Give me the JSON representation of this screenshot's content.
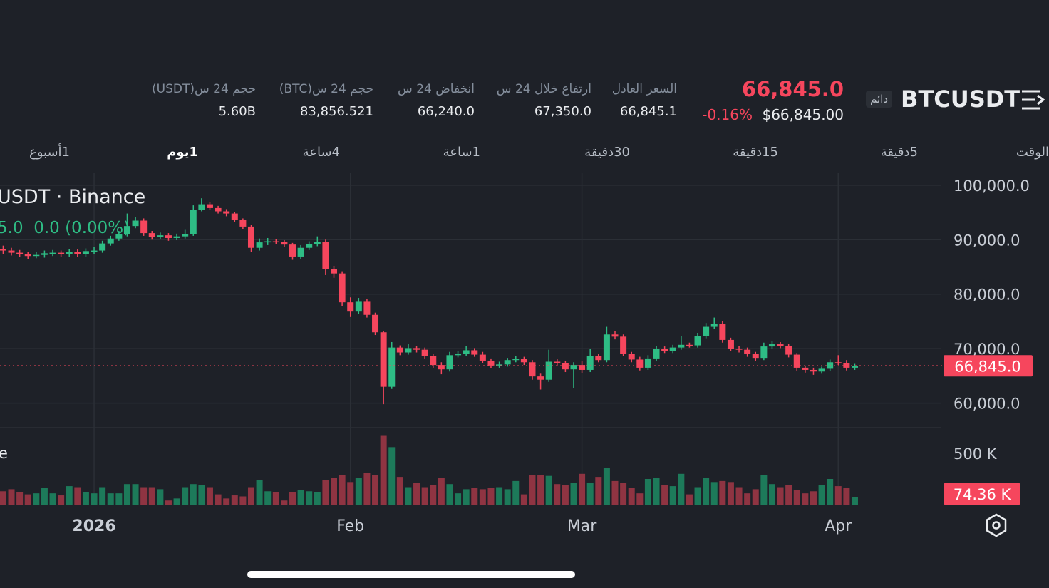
{
  "header": {
    "symbol": "BTCUSDT",
    "badge": "دائم",
    "price": "66,845.0",
    "change": "-0.16%",
    "price_usd": "$66,845.00",
    "stats": [
      {
        "label": "السعر العادل",
        "value": "66,845.1"
      },
      {
        "label": "ارتفاع خلال 24 س",
        "value": "67,350.0"
      },
      {
        "label": "انخفاض 24 س",
        "value": "66,240.0"
      },
      {
        "label": "حجم 24 س(BTC)",
        "value": "83,856.521"
      },
      {
        "label": "حجم 24 س(USDT)",
        "value": "5.60B"
      }
    ]
  },
  "timeframes": {
    "items": [
      "الوقت",
      "5دقيقة",
      "15دقيقة",
      "30دقيقة",
      "1ساعة",
      "4ساعة",
      "1يوم",
      "1أسبوع"
    ],
    "active": 6
  },
  "chart_data": {
    "type": "candlestick",
    "title": "USDT · Binance",
    "readout": "5.0  0.0 (0.00%)",
    "up_color": "#2ebd85",
    "down_color": "#f6465d",
    "open": [
      88300,
      88000,
      87600,
      87300,
      87000,
      87200,
      87500,
      87600,
      87400,
      87800,
      87300,
      87900,
      88000,
      89300,
      90200,
      91000,
      92500,
      93500,
      91200,
      90500,
      90800,
      90300,
      90600,
      91000,
      95500,
      96500,
      95800,
      95200,
      94800,
      93600,
      92400,
      88500,
      89500,
      89700,
      89600,
      89100,
      86900,
      88500,
      89200,
      89600,
      84600,
      83800,
      78500,
      76800,
      78600,
      76200,
      73000,
      63000,
      70200,
      69300,
      70100,
      69800,
      68600,
      67000,
      66200,
      68800,
      69000,
      69700,
      68900,
      67800,
      66900,
      67100,
      67900,
      68100,
      67500,
      64900,
      64300,
      67600,
      67400,
      66200,
      67000,
      66100,
      68600,
      67900,
      72600,
      72200,
      69000,
      68000,
      66500,
      68200,
      69900,
      69600,
      70200,
      70700,
      70600,
      72300,
      74000,
      74600,
      71600,
      70000,
      69800,
      69000,
      68300,
      70400,
      70800,
      70500,
      68900,
      66500,
      66100,
      65800,
      66300,
      67500,
      67400,
      66500
    ],
    "high": [
      88900,
      88500,
      88100,
      87800,
      87700,
      88000,
      88100,
      88000,
      88300,
      88200,
      88400,
      88600,
      89800,
      90700,
      91600,
      94800,
      94200,
      93900,
      91600,
      91300,
      91200,
      91100,
      91800,
      96300,
      97600,
      96900,
      96200,
      95600,
      95100,
      93900,
      92700,
      90200,
      90300,
      90100,
      89900,
      89400,
      89000,
      89700,
      90600,
      90000,
      85200,
      84200,
      79400,
      79300,
      79100,
      76600,
      73200,
      71200,
      70600,
      70800,
      70500,
      70200,
      69100,
      67500,
      69400,
      69600,
      70500,
      70100,
      69400,
      68200,
      67600,
      68300,
      68600,
      68500,
      67900,
      65400,
      69800,
      68100,
      67800,
      67500,
      67700,
      70000,
      69000,
      74000,
      73200,
      72600,
      69400,
      68500,
      68800,
      70500,
      70400,
      70700,
      72300,
      71100,
      72900,
      74700,
      75700,
      75000,
      72000,
      70500,
      70200,
      69400,
      71100,
      71400,
      71200,
      70900,
      69200,
      66900,
      66500,
      66700,
      68000,
      68800,
      67900,
      67200
    ],
    "low": [
      87400,
      87100,
      86800,
      86500,
      86600,
      86700,
      87000,
      86900,
      86900,
      86800,
      86900,
      87400,
      87600,
      88900,
      89800,
      90600,
      92100,
      90700,
      90000,
      90100,
      89800,
      89900,
      90200,
      90700,
      95200,
      95400,
      94800,
      94300,
      93200,
      91900,
      87700,
      88000,
      89000,
      89200,
      88700,
      86300,
      86500,
      88100,
      88800,
      83500,
      83000,
      77800,
      75800,
      76400,
      75700,
      72500,
      59800,
      62600,
      68800,
      68900,
      69300,
      68200,
      66500,
      65300,
      65800,
      68400,
      68600,
      68500,
      67300,
      66400,
      66500,
      66700,
      67500,
      67000,
      64300,
      62500,
      63900,
      66900,
      65700,
      62800,
      65500,
      65700,
      67500,
      67500,
      71700,
      68600,
      67500,
      66000,
      66100,
      67800,
      69200,
      69200,
      69800,
      70200,
      70200,
      71900,
      73600,
      71100,
      69500,
      69300,
      68500,
      67800,
      67900,
      70000,
      70100,
      68400,
      65900,
      65600,
      65200,
      65400,
      65900,
      67000,
      66000,
      66100
    ],
    "close": [
      88000,
      87600,
      87300,
      87000,
      87200,
      87500,
      87600,
      87400,
      87800,
      87300,
      87900,
      88000,
      89300,
      90200,
      91000,
      92500,
      93500,
      91200,
      90500,
      90800,
      90300,
      90600,
      91000,
      95500,
      96500,
      95800,
      95200,
      94800,
      93600,
      92400,
      88500,
      89500,
      89700,
      89600,
      89100,
      86900,
      88500,
      89200,
      89600,
      84600,
      83800,
      78500,
      76800,
      78600,
      76200,
      73000,
      63000,
      70200,
      69300,
      70100,
      69800,
      68600,
      67000,
      66200,
      68800,
      69000,
      69700,
      68900,
      67800,
      66900,
      67100,
      67900,
      68100,
      67500,
      64900,
      64300,
      67600,
      67400,
      66200,
      67000,
      66100,
      68600,
      67900,
      72600,
      72200,
      69000,
      68000,
      66500,
      68200,
      69900,
      69600,
      70200,
      70700,
      70600,
      72300,
      74000,
      74600,
      71600,
      70000,
      69800,
      69000,
      68300,
      70400,
      70800,
      70500,
      68900,
      66500,
      66100,
      65800,
      66300,
      67500,
      67400,
      66500,
      66845
    ],
    "xlim": [
      -0.38,
      115.8
    ],
    "xticks": [
      {
        "value": 11,
        "label": "2026"
      },
      {
        "value": 42,
        "label": "Feb"
      },
      {
        "value": 70,
        "label": "Mar"
      },
      {
        "value": 101,
        "label": "Apr"
      }
    ],
    "ylim": [
      55500,
      102200
    ],
    "yticks": [
      {
        "value": 60000,
        "label": "60,000.0"
      },
      {
        "value": 70000,
        "label": "70,000.0"
      },
      {
        "value": 80000,
        "label": "80,000.0"
      },
      {
        "value": 90000,
        "label": "90,000.0"
      },
      {
        "value": 100000,
        "label": "100,000.0"
      }
    ],
    "last_price": {
      "value": 66845,
      "label": "66,845.0"
    },
    "grid": true,
    "volume": {
      "label": "e",
      "values": [
        130000,
        150000,
        120000,
        100000,
        110000,
        160000,
        110000,
        90000,
        180000,
        170000,
        120000,
        110000,
        170000,
        110000,
        110000,
        200000,
        200000,
        170000,
        170000,
        150000,
        40000,
        60000,
        170000,
        200000,
        190000,
        170000,
        100000,
        60000,
        90000,
        80000,
        170000,
        240000,
        130000,
        120000,
        40000,
        120000,
        140000,
        130000,
        120000,
        240000,
        260000,
        290000,
        220000,
        260000,
        310000,
        290000,
        670000,
        560000,
        270000,
        170000,
        210000,
        170000,
        190000,
        260000,
        200000,
        110000,
        150000,
        160000,
        150000,
        160000,
        170000,
        150000,
        230000,
        100000,
        290000,
        290000,
        280000,
        200000,
        190000,
        210000,
        300000,
        210000,
        270000,
        360000,
        230000,
        210000,
        160000,
        110000,
        250000,
        260000,
        190000,
        180000,
        300000,
        100000,
        170000,
        260000,
        220000,
        230000,
        220000,
        170000,
        110000,
        150000,
        290000,
        200000,
        170000,
        190000,
        140000,
        110000,
        130000,
        190000,
        250000,
        180000,
        160000,
        74360
      ],
      "last_label": "74.36 K",
      "up_color": "#1d7a5a",
      "down_color": "#8f3442",
      "ylim": [
        0,
        700000
      ],
      "yticks": [
        {
          "value": 500000,
          "label": "500 K"
        }
      ]
    }
  }
}
